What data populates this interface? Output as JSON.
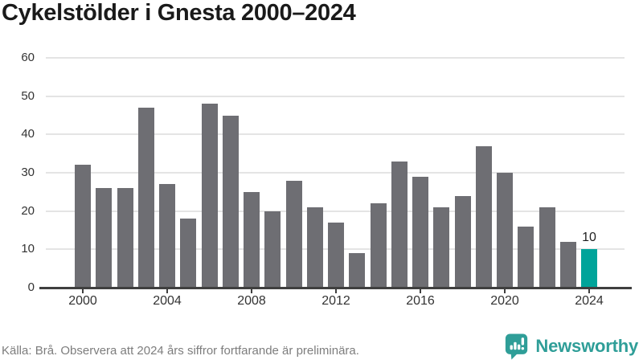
{
  "page": {
    "title": "Cykelstölder i Gnesta 2000–2024",
    "footer_source": "Källa: Brå. Observera att 2024 års siffror fortfarande är preliminära.",
    "brand": {
      "name": "Newsworthy",
      "icon": "newsworthy-speech-bubble-bar-chart-icon",
      "color": "#2f9e98"
    }
  },
  "chart_data": {
    "type": "bar",
    "title": "Cykelstölder i Gnesta 2000–2024",
    "categories": [
      "2000",
      "2001",
      "2002",
      "2003",
      "2004",
      "2005",
      "2006",
      "2007",
      "2008",
      "2009",
      "2010",
      "2011",
      "2012",
      "2013",
      "2014",
      "2015",
      "2016",
      "2017",
      "2018",
      "2019",
      "2020",
      "2021",
      "2022",
      "2023",
      "2024"
    ],
    "values": [
      32,
      26,
      26,
      47,
      27,
      18,
      48,
      45,
      25,
      20,
      28,
      21,
      17,
      9,
      22,
      33,
      29,
      21,
      24,
      37,
      30,
      16,
      21,
      12,
      10
    ],
    "xlabel": "",
    "ylabel": "",
    "ylim": [
      0,
      60
    ],
    "yticks": [
      0,
      10,
      20,
      30,
      40,
      50,
      60
    ],
    "xtick_labels": [
      "2000",
      "2004",
      "2008",
      "2012",
      "2016",
      "2020",
      "2024"
    ],
    "grid": true,
    "legend_position": "none",
    "bar_color": "#6e6e73",
    "highlight": {
      "category": "2024",
      "color": "#00a49a",
      "data_label": "10"
    }
  }
}
